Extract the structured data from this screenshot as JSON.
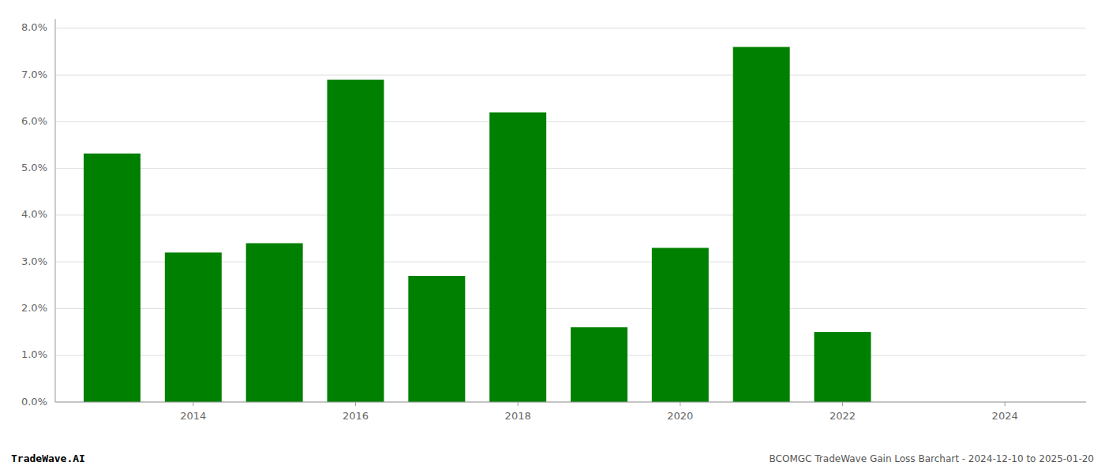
{
  "chart_data": {
    "type": "bar",
    "title": "BCOMGC TradeWave Gain Loss Barchart - 2024-12-10 to 2025-01-20",
    "annotations": [
      "TradeWave.AI"
    ],
    "x": [
      2013,
      2014,
      2015,
      2016,
      2017,
      2018,
      2019,
      2020,
      2021,
      2022,
      2023
    ],
    "values": [
      0.0532,
      0.032,
      0.034,
      0.069,
      0.027,
      0.062,
      0.016,
      0.033,
      0.076,
      0.015,
      0.0
    ],
    "color": "#008000",
    "xlim": [
      2012.3,
      2025.0
    ],
    "xticks": [
      2014,
      2016,
      2018,
      2020,
      2022,
      2024
    ],
    "ylim": [
      0.0,
      0.082
    ],
    "yticks": [
      {
        "value": 0.0,
        "label": "0.0%"
      },
      {
        "value": 0.01,
        "label": "1.0%"
      },
      {
        "value": 0.02,
        "label": "2.0%"
      },
      {
        "value": 0.03,
        "label": "3.0%"
      },
      {
        "value": 0.04,
        "label": "4.0%"
      },
      {
        "value": 0.05,
        "label": "5.0%"
      },
      {
        "value": 0.06,
        "label": "6.0%"
      },
      {
        "value": 0.07,
        "label": "7.0%"
      },
      {
        "value": 0.08,
        "label": "8.0%"
      }
    ],
    "grid": true
  }
}
